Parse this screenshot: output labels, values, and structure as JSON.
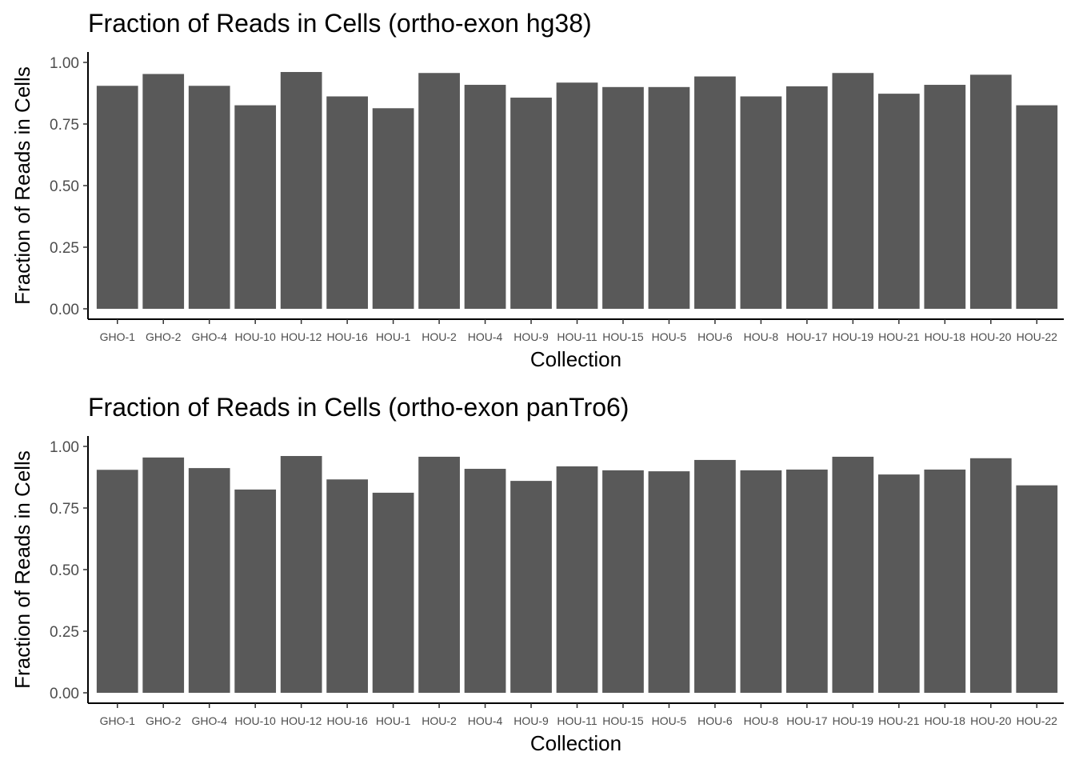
{
  "chart_data": [
    {
      "type": "bar",
      "title": "Fraction of Reads in Cells (ortho-exon hg38)",
      "xlabel": "Collection",
      "ylabel": "Fraction of Reads in Cells",
      "ylim": [
        0,
        1.05
      ],
      "yticks": [
        "0.00",
        "0.25",
        "0.50",
        "0.75",
        "1.00"
      ],
      "grid": false,
      "bar_color": "#595959",
      "categories": [
        "GHO-1",
        "GHO-2",
        "GHO-4",
        "HOU-10",
        "HOU-12",
        "HOU-16",
        "HOU-1",
        "HOU-2",
        "HOU-4",
        "HOU-9",
        "HOU-11",
        "HOU-15",
        "HOU-5",
        "HOU-6",
        "HOU-8",
        "HOU-17",
        "HOU-19",
        "HOU-21",
        "HOU-18",
        "HOU-20",
        "HOU-22"
      ],
      "values": [
        0.905,
        0.953,
        0.905,
        0.826,
        0.961,
        0.862,
        0.814,
        0.957,
        0.909,
        0.857,
        0.918,
        0.9,
        0.9,
        0.943,
        0.862,
        0.903,
        0.957,
        0.873,
        0.909,
        0.95,
        0.826
      ]
    },
    {
      "type": "bar",
      "title": "Fraction of Reads in Cells (ortho-exon panTro6)",
      "xlabel": "Collection",
      "ylabel": "Fraction of Reads in Cells",
      "ylim": [
        0,
        1.05
      ],
      "yticks": [
        "0.00",
        "0.25",
        "0.50",
        "0.75",
        "1.00"
      ],
      "grid": false,
      "bar_color": "#595959",
      "categories": [
        "GHO-1",
        "GHO-2",
        "GHO-4",
        "HOU-10",
        "HOU-12",
        "HOU-16",
        "HOU-1",
        "HOU-2",
        "HOU-4",
        "HOU-9",
        "HOU-11",
        "HOU-15",
        "HOU-5",
        "HOU-6",
        "HOU-8",
        "HOU-17",
        "HOU-19",
        "HOU-21",
        "HOU-18",
        "HOU-20",
        "HOU-22"
      ],
      "values": [
        0.905,
        0.955,
        0.912,
        0.825,
        0.961,
        0.866,
        0.812,
        0.958,
        0.909,
        0.86,
        0.919,
        0.903,
        0.899,
        0.945,
        0.903,
        0.906,
        0.958,
        0.886,
        0.906,
        0.952,
        0.842
      ]
    }
  ]
}
